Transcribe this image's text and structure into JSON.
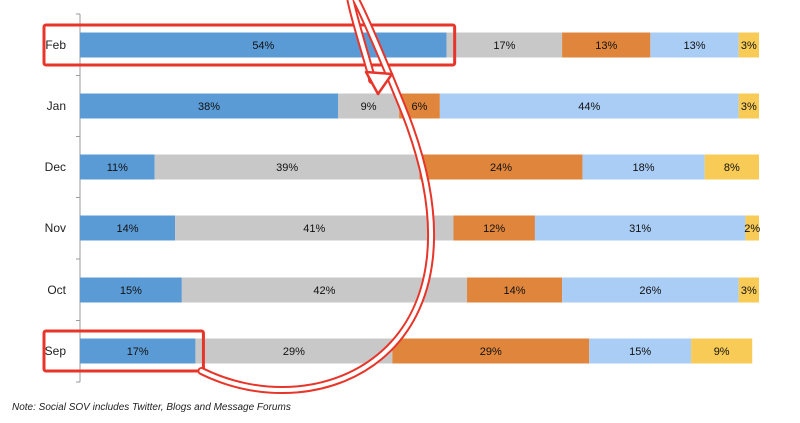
{
  "chart_data": {
    "type": "bar",
    "orientation": "horizontal",
    "stacked": true,
    "percent_stacked": true,
    "categories": [
      "Feb",
      "Jan",
      "Dec",
      "Nov",
      "Oct",
      "Sep"
    ],
    "series": [
      {
        "values": [
          54,
          38,
          11,
          14,
          15,
          17
        ],
        "labels": [
          "54%",
          "38%",
          "11%",
          "14%",
          "15%",
          "17%"
        ],
        "color": "#5b9bd5"
      },
      {
        "values": [
          17,
          9,
          39,
          41,
          42,
          29
        ],
        "labels": [
          "17%",
          "9%",
          "39%",
          "41%",
          "42%",
          "29%"
        ],
        "color": "#c8c8c8"
      },
      {
        "values": [
          13,
          6,
          24,
          12,
          14,
          29
        ],
        "labels": [
          "13%",
          "6%",
          "24%",
          "12%",
          "14%",
          "29%"
        ],
        "color": "#e0853c"
      },
      {
        "values": [
          13,
          44,
          18,
          31,
          26,
          15
        ],
        "labels": [
          "13%",
          "44%",
          "18%",
          "31%",
          "26%",
          "15%"
        ],
        "color": "#a9cdf5"
      },
      {
        "values": [
          3,
          3,
          8,
          2,
          3,
          9
        ],
        "labels": [
          "3%",
          "3%",
          "8%",
          "2%",
          "3%",
          "9%"
        ],
        "color": "#f7cb55"
      }
    ],
    "xlim": [
      0,
      100
    ],
    "grid": false,
    "highlight": {
      "categories": [
        "Feb",
        "Sep"
      ],
      "color": "#e8352a",
      "arrow": {
        "from": "Sep",
        "to": "Feb"
      }
    }
  },
  "note": "Note:  Social SOV includes Twitter, Blogs and Message Forums"
}
